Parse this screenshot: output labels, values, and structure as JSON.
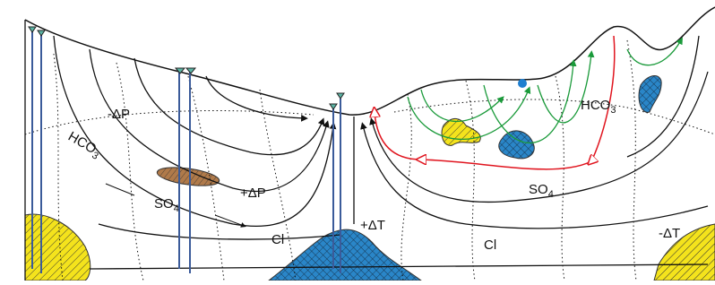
{
  "labels": [
    {
      "text": "-ΔP"
    },
    {
      "text": "HCO",
      "sub": "3"
    },
    {
      "text": "SO",
      "sub": "4"
    },
    {
      "text": "+ΔP"
    },
    {
      "text": "Cl"
    },
    {
      "text": "+ΔT"
    },
    {
      "text": "Cl"
    },
    {
      "text": "HCO",
      "sub": "3"
    },
    {
      "text": "SO",
      "sub": "4"
    },
    {
      "text": "-ΔT"
    }
  ]
}
